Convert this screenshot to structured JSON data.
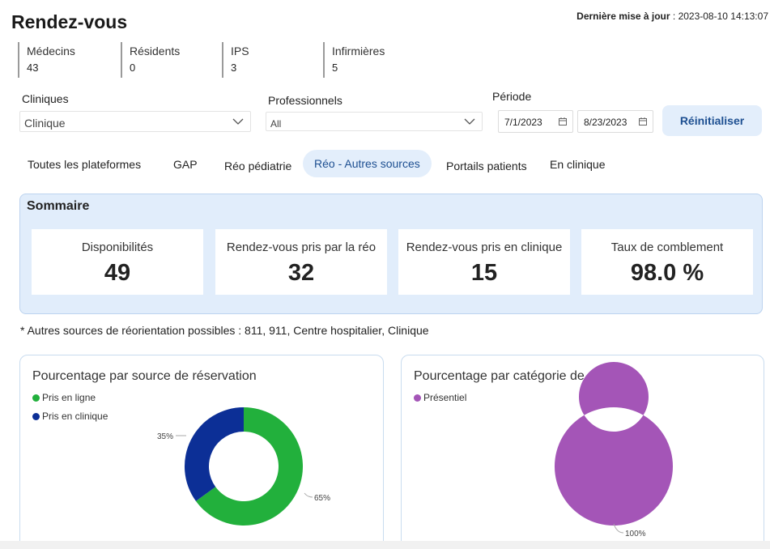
{
  "header": {
    "title": "Rendez-vous",
    "last_update_label": "Dernière mise à jour",
    "last_update_value": " : 2023-08-10 14:13:07"
  },
  "counts": [
    {
      "label": "Médecins",
      "value": "43"
    },
    {
      "label": "Résidents",
      "value": "0"
    },
    {
      "label": "IPS",
      "value": "3"
    },
    {
      "label": "Infirmières",
      "value": "5"
    }
  ],
  "filters": {
    "clinics_label": "Cliniques",
    "clinics_value": "Clinique",
    "professionals_label": "Professionnels",
    "professionals_value": "All",
    "period_label": "Période",
    "start_date": "7/1/2023",
    "end_date": "8/23/2023",
    "reset_label": "Réinitialiser"
  },
  "tabs": [
    {
      "label": "Toutes les plateformes",
      "active": false
    },
    {
      "label": "GAP",
      "active": false
    },
    {
      "label": "Réo pédiatrie",
      "active": false
    },
    {
      "label": "Réo - Autres sources",
      "active": true
    },
    {
      "label": "Portails patients",
      "active": false
    },
    {
      "label": "En clinique",
      "active": false
    }
  ],
  "summary": {
    "title": "Sommaire",
    "cards": [
      {
        "label": "Disponibilités",
        "value": "49"
      },
      {
        "label": "Rendez-vous pris par la réo",
        "value": "32"
      },
      {
        "label": "Rendez-vous pris en clinique",
        "value": "15"
      },
      {
        "label": "Taux de comblement",
        "value": "98.0 %"
      }
    ]
  },
  "note": "* Autres sources de réorientation possibles : 811, 911, Centre hospitalier, Clinique",
  "colors": {
    "green": "#22b03c",
    "navy": "#0c2f96",
    "purple": "#a455b7",
    "accent": "#1d4f91"
  },
  "chart_data": [
    {
      "type": "pie",
      "title": "Pourcentage par source de réservation",
      "series": [
        {
          "name": "Pris en ligne",
          "value": 65,
          "label": "65%",
          "color": "#22b03c"
        },
        {
          "name": "Pris en clinique",
          "value": 35,
          "label": "35%",
          "color": "#0c2f96"
        }
      ]
    },
    {
      "type": "pie",
      "title": "Pourcentage par catégorie de service",
      "series": [
        {
          "name": "Présentiel",
          "value": 100,
          "label": "100%",
          "color": "#a455b7"
        }
      ]
    }
  ]
}
